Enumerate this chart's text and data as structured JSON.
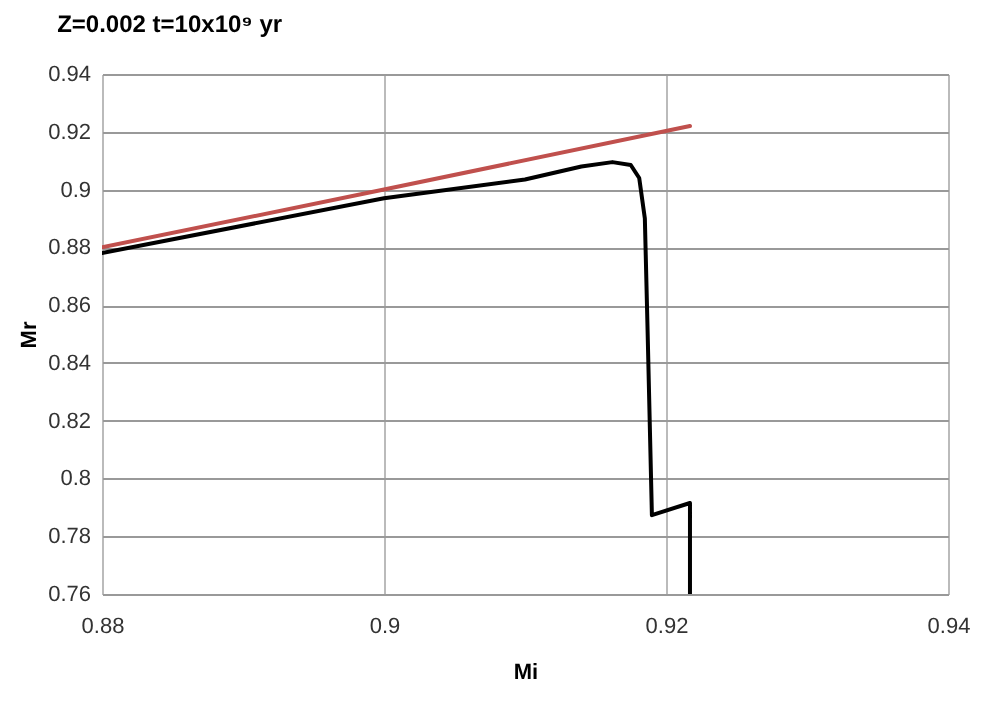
{
  "chart_data": {
    "type": "line",
    "title": "Z=0.002 t=10x10⁹ yr",
    "xlabel": "Mi",
    "ylabel": "Mr",
    "xlim": [
      0.88,
      0.94
    ],
    "xticks": [
      0.88,
      0.9,
      0.92,
      0.94
    ],
    "ylim": [
      0.76,
      0.94
    ],
    "yticks": [
      0.76,
      0.78,
      0.8,
      0.82,
      0.84,
      0.86,
      0.88,
      0.9,
      0.92,
      0.94
    ],
    "grid": true,
    "legend": false,
    "marker": "none",
    "line_style": "solid",
    "series": [
      {
        "color": "#c0504d",
        "x": [
          0.88,
          0.9,
          0.9217
        ],
        "values": [
          0.88,
          0.9,
          0.922
        ]
      },
      {
        "color": "#000000",
        "x": [
          0.88,
          0.9,
          0.91,
          0.914,
          0.9162,
          0.9175,
          0.9181,
          0.9185,
          0.9187,
          0.919,
          0.9217,
          0.9217
        ],
        "values": [
          0.878,
          0.897,
          0.9035,
          0.908,
          0.9095,
          0.9085,
          0.904,
          0.89,
          0.85,
          0.7873,
          0.7915,
          0.76
        ]
      }
    ]
  }
}
